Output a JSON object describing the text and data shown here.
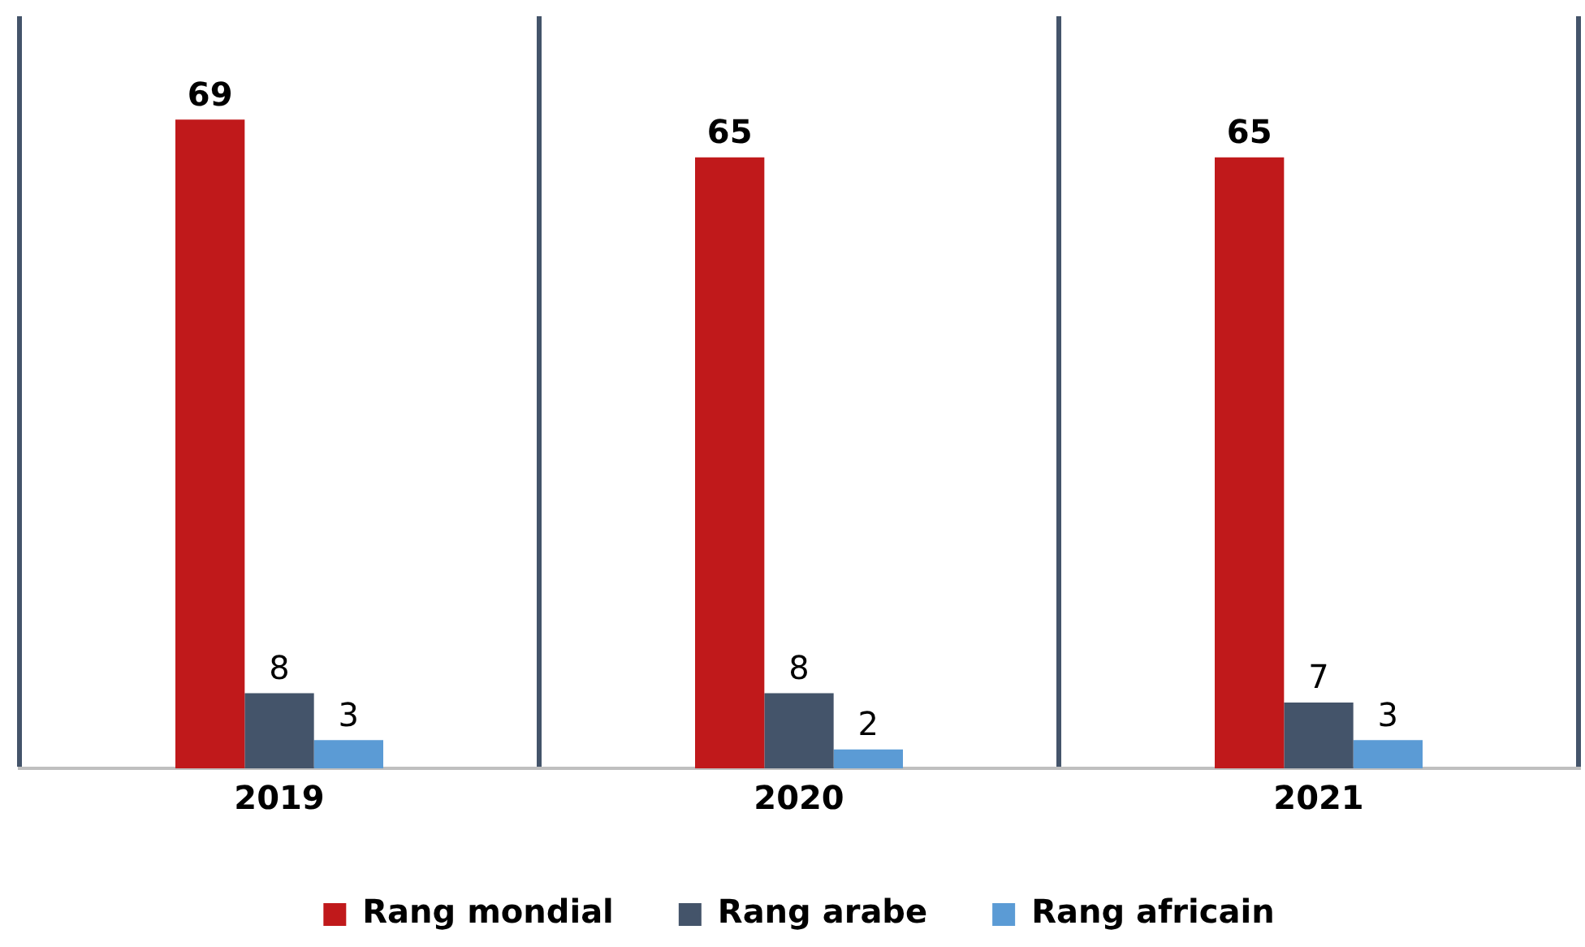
{
  "chart_data": {
    "type": "bar",
    "categories": [
      "2019",
      "2020",
      "2021"
    ],
    "series": [
      {
        "name": "Rang mondial",
        "color": "#c0191b",
        "values": [
          69,
          65,
          65
        ]
      },
      {
        "name": "Rang arabe",
        "color": "#44546a",
        "values": [
          8,
          8,
          7
        ]
      },
      {
        "name": "Rang africain",
        "color": "#5b9bd5",
        "values": [
          3,
          2,
          3
        ]
      }
    ],
    "data_labels": true,
    "grid": "x",
    "legend": "bottom"
  }
}
